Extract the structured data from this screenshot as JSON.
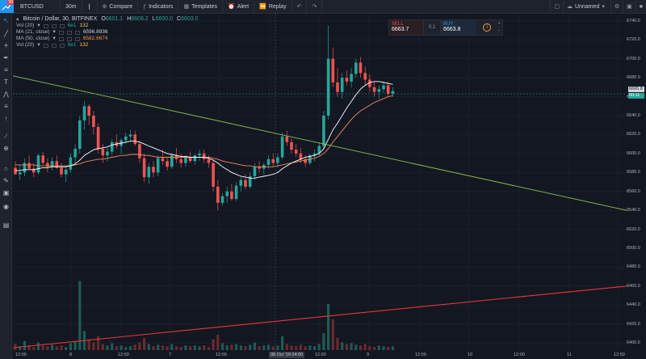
{
  "toolbar": {
    "logo_badge": "99",
    "symbol": "BTCUSD",
    "interval": "30m",
    "compare": "Compare",
    "indicators": "Indicators",
    "templates": "Templates",
    "alert": "Alert",
    "replay": "Replay",
    "layout_name": "Unnamed"
  },
  "legend": {
    "title": "Bitcoin / Dollar, 30, BITFINEX",
    "ohlc": {
      "o_label": "O",
      "o": "6601.1",
      "h_label": "H",
      "h": "6608.2",
      "l_label": "L",
      "l": "6600.0",
      "c_label": "C",
      "c": "6603.0"
    },
    "indicators": [
      {
        "name": "Vol (20)",
        "values": [
          "6e1",
          "132"
        ]
      },
      {
        "name": "MA (21, close)",
        "values": [
          "6596.8936"
        ]
      },
      {
        "name": "MA (50, close)",
        "values": [
          "6582.6674"
        ]
      },
      {
        "name": "Vol (20)",
        "values": [
          "6e1",
          "132"
        ]
      }
    ]
  },
  "trade_panel": {
    "sell_label": "SELL",
    "sell_price": "6663.7",
    "spread": "0.1",
    "buy_label": "BUY",
    "buy_price": "6663.8"
  },
  "price_axis": {
    "labels": [
      "6740.0",
      "6720.0",
      "6700.0",
      "6680.0",
      "6660.0",
      "6640.0",
      "6620.0",
      "6600.0",
      "6580.0",
      "6560.0",
      "6540.0",
      "6520.0",
      "6500.0",
      "6480.0",
      "6460.0",
      "6440.0",
      "6420.0",
      "6400.0"
    ],
    "last_price": "6665.8",
    "time_to_close": "00:11"
  },
  "time_axis": {
    "labels": [
      "12:00",
      "8",
      "12:00",
      "7",
      "12:00",
      "12:00",
      "9",
      "12:00",
      "10",
      "12:00",
      "11",
      "12:00"
    ],
    "cursor_label": "08 Oct '18  04:00"
  },
  "colors": {
    "up": "#26a69a",
    "down": "#ef5350",
    "ma21": "#ffffff",
    "ma50": "#f08a5d",
    "trend_down": "#8bc34a",
    "trend_up": "#e53935"
  },
  "chart_data": {
    "type": "candlestick",
    "symbol": "BTCUSD",
    "interval": "30",
    "exchange": "BITFINEX",
    "ylim": [
      6395,
      6745
    ],
    "candles": [
      [
        6585,
        6592,
        6580,
        6578
      ],
      [
        6578,
        6588,
        6572,
        6580
      ],
      [
        6580,
        6595,
        6576,
        6590
      ],
      [
        6590,
        6598,
        6585,
        6584
      ],
      [
        6584,
        6590,
        6575,
        6580
      ],
      [
        6580,
        6600,
        6578,
        6598
      ],
      [
        6598,
        6602,
        6588,
        6590
      ],
      [
        6590,
        6595,
        6580,
        6586
      ],
      [
        6586,
        6596,
        6582,
        6592
      ],
      [
        6592,
        6598,
        6584,
        6585
      ],
      [
        6585,
        6590,
        6575,
        6578
      ],
      [
        6578,
        6586,
        6570,
        6583
      ],
      [
        6583,
        6600,
        6580,
        6596
      ],
      [
        6596,
        6610,
        6590,
        6605
      ],
      [
        6605,
        6640,
        6600,
        6635
      ],
      [
        6635,
        6655,
        6625,
        6650
      ],
      [
        6650,
        6652,
        6630,
        6640
      ],
      [
        6640,
        6645,
        6620,
        6628
      ],
      [
        6628,
        6632,
        6600,
        6605
      ],
      [
        6605,
        6610,
        6590,
        6598
      ],
      [
        6598,
        6606,
        6592,
        6602
      ],
      [
        6602,
        6615,
        6598,
        6612
      ],
      [
        6612,
        6620,
        6605,
        6608
      ],
      [
        6608,
        6616,
        6600,
        6614
      ],
      [
        6614,
        6622,
        6610,
        6618
      ],
      [
        6618,
        6625,
        6612,
        6620
      ],
      [
        6620,
        6624,
        6608,
        6610
      ],
      [
        6610,
        6614,
        6590,
        6595
      ],
      [
        6595,
        6600,
        6570,
        6575
      ],
      [
        6575,
        6590,
        6568,
        6586
      ],
      [
        6586,
        6592,
        6575,
        6580
      ],
      [
        6580,
        6598,
        6576,
        6595
      ],
      [
        6595,
        6604,
        6588,
        6592
      ],
      [
        6592,
        6596,
        6582,
        6586
      ],
      [
        6586,
        6600,
        6584,
        6598
      ],
      [
        6598,
        6606,
        6590,
        6594
      ],
      [
        6594,
        6600,
        6585,
        6590
      ],
      [
        6590,
        6598,
        6586,
        6596
      ],
      [
        6596,
        6602,
        6590,
        6592
      ],
      [
        6592,
        6600,
        6588,
        6598
      ],
      [
        6598,
        6604,
        6592,
        6600
      ],
      [
        6600,
        6604,
        6590,
        6594
      ],
      [
        6594,
        6598,
        6585,
        6590
      ],
      [
        6590,
        6594,
        6560,
        6565
      ],
      [
        6565,
        6572,
        6540,
        6548
      ],
      [
        6548,
        6558,
        6545,
        6555
      ],
      [
        6555,
        6565,
        6548,
        6560
      ],
      [
        6560,
        6568,
        6550,
        6552
      ],
      [
        6552,
        6570,
        6550,
        6566
      ],
      [
        6566,
        6575,
        6560,
        6572
      ],
      [
        6572,
        6578,
        6562,
        6565
      ],
      [
        6565,
        6580,
        6563,
        6576
      ],
      [
        6576,
        6590,
        6572,
        6586
      ],
      [
        6586,
        6592,
        6580,
        6584
      ],
      [
        6584,
        6590,
        6578,
        6588
      ],
      [
        6588,
        6598,
        6584,
        6594
      ],
      [
        6594,
        6600,
        6586,
        6590
      ],
      [
        6590,
        6600,
        6585,
        6596
      ],
      [
        6596,
        6622,
        6594,
        6618
      ],
      [
        6618,
        6624,
        6608,
        6612
      ],
      [
        6612,
        6616,
        6600,
        6604
      ],
      [
        6604,
        6610,
        6596,
        6600
      ],
      [
        6600,
        6606,
        6590,
        6594
      ],
      [
        6594,
        6598,
        6586,
        6590
      ],
      [
        6590,
        6600,
        6588,
        6598
      ],
      [
        6598,
        6604,
        6592,
        6600
      ],
      [
        6600,
        6612,
        6598,
        6608
      ],
      [
        6608,
        6645,
        6605,
        6640
      ],
      [
        6640,
        6735,
        6636,
        6700
      ],
      [
        6700,
        6712,
        6670,
        6675
      ],
      [
        6675,
        6690,
        6660,
        6665
      ],
      [
        6665,
        6685,
        6658,
        6680
      ],
      [
        6680,
        6688,
        6672,
        6676
      ],
      [
        6676,
        6690,
        6670,
        6684
      ],
      [
        6684,
        6700,
        6680,
        6696
      ],
      [
        6696,
        6702,
        6680,
        6685
      ],
      [
        6685,
        6692,
        6672,
        6678
      ],
      [
        6678,
        6684,
        6665,
        6670
      ],
      [
        6670,
        6676,
        6660,
        6665
      ],
      [
        6665,
        6672,
        6658,
        6668
      ],
      [
        6668,
        6676,
        6664,
        6672
      ],
      [
        6672,
        6676,
        6660,
        6663
      ],
      [
        6663,
        6670,
        6660,
        6666
      ]
    ],
    "ma21": [
      6582,
      6582,
      6583,
      6583,
      6583,
      6584,
      6585,
      6585,
      6586,
      6586,
      6586,
      6586,
      6587,
      6589,
      6593,
      6598,
      6601,
      6604,
      6605,
      6606,
      6607,
      6609,
      6610,
      6611,
      6612,
      6613,
      6613,
      6612,
      6610,
      6608,
      6606,
      6604,
      6602,
      6600,
      6599,
      6598,
      6597,
      6597,
      6596,
      6596,
      6596,
      6596,
      6595,
      6593,
      6590,
      6586,
      6583,
      6580,
      6578,
      6576,
      6575,
      6574,
      6574,
      6575,
      6576,
      6577,
      6578,
      6580,
      6584,
      6587,
      6590,
      6592,
      6594,
      6596,
      6597,
      6598,
      6600,
      6605,
      6615,
      6625,
      6632,
      6640,
      6648,
      6655,
      6662,
      6668,
      6672,
      6675,
      6676,
      6676,
      6675,
      6674,
      6673
    ],
    "ma50": [
      6588,
      6588,
      6588,
      6588,
      6588,
      6587,
      6587,
      6587,
      6587,
      6587,
      6587,
      6587,
      6587,
      6588,
      6589,
      6591,
      6592,
      6593,
      6594,
      6594,
      6595,
      6596,
      6597,
      6598,
      6598,
      6599,
      6599,
      6599,
      6598,
      6598,
      6597,
      6596,
      6596,
      6596,
      6596,
      6596,
      6596,
      6596,
      6596,
      6596,
      6596,
      6596,
      6596,
      6595,
      6594,
      6592,
      6591,
      6590,
      6589,
      6588,
      6587,
      6587,
      6586,
      6586,
      6586,
      6586,
      6586,
      6587,
      6588,
      6589,
      6590,
      6591,
      6592,
      6593,
      6594,
      6595,
      6597,
      6600,
      6605,
      6612,
      6618,
      6624,
      6630,
      6636,
      6641,
      6645,
      6648,
      6651,
      6654,
      6656,
      6658,
      6660,
      6661
    ],
    "volume": [
      8,
      5,
      12,
      6,
      4,
      10,
      6,
      5,
      7,
      5,
      6,
      4,
      9,
      12,
      90,
      25,
      14,
      10,
      18,
      8,
      6,
      9,
      5,
      6,
      4,
      5,
      7,
      10,
      16,
      8,
      5,
      7,
      6,
      5,
      8,
      5,
      4,
      6,
      5,
      6,
      5,
      6,
      4,
      14,
      20,
      9,
      6,
      7,
      8,
      6,
      5,
      7,
      10,
      5,
      6,
      7,
      5,
      6,
      18,
      8,
      6,
      5,
      7,
      5,
      6,
      5,
      8,
      22,
      60,
      40,
      16,
      10,
      8,
      9,
      7,
      6,
      8,
      5,
      4,
      6,
      5,
      4,
      5
    ],
    "trendlines": [
      {
        "color": "green",
        "from": {
          "time": "12:00 (6 Oct)",
          "price": 6675
        },
        "to": {
          "time": "12:00 (11 Oct)",
          "price": 6534
        }
      },
      {
        "color": "red",
        "from": {
          "time": "12:00 (6 Oct)",
          "price": 6400
        },
        "to": {
          "time": "12:00 (11 Oct)",
          "price": 6457
        }
      }
    ]
  }
}
